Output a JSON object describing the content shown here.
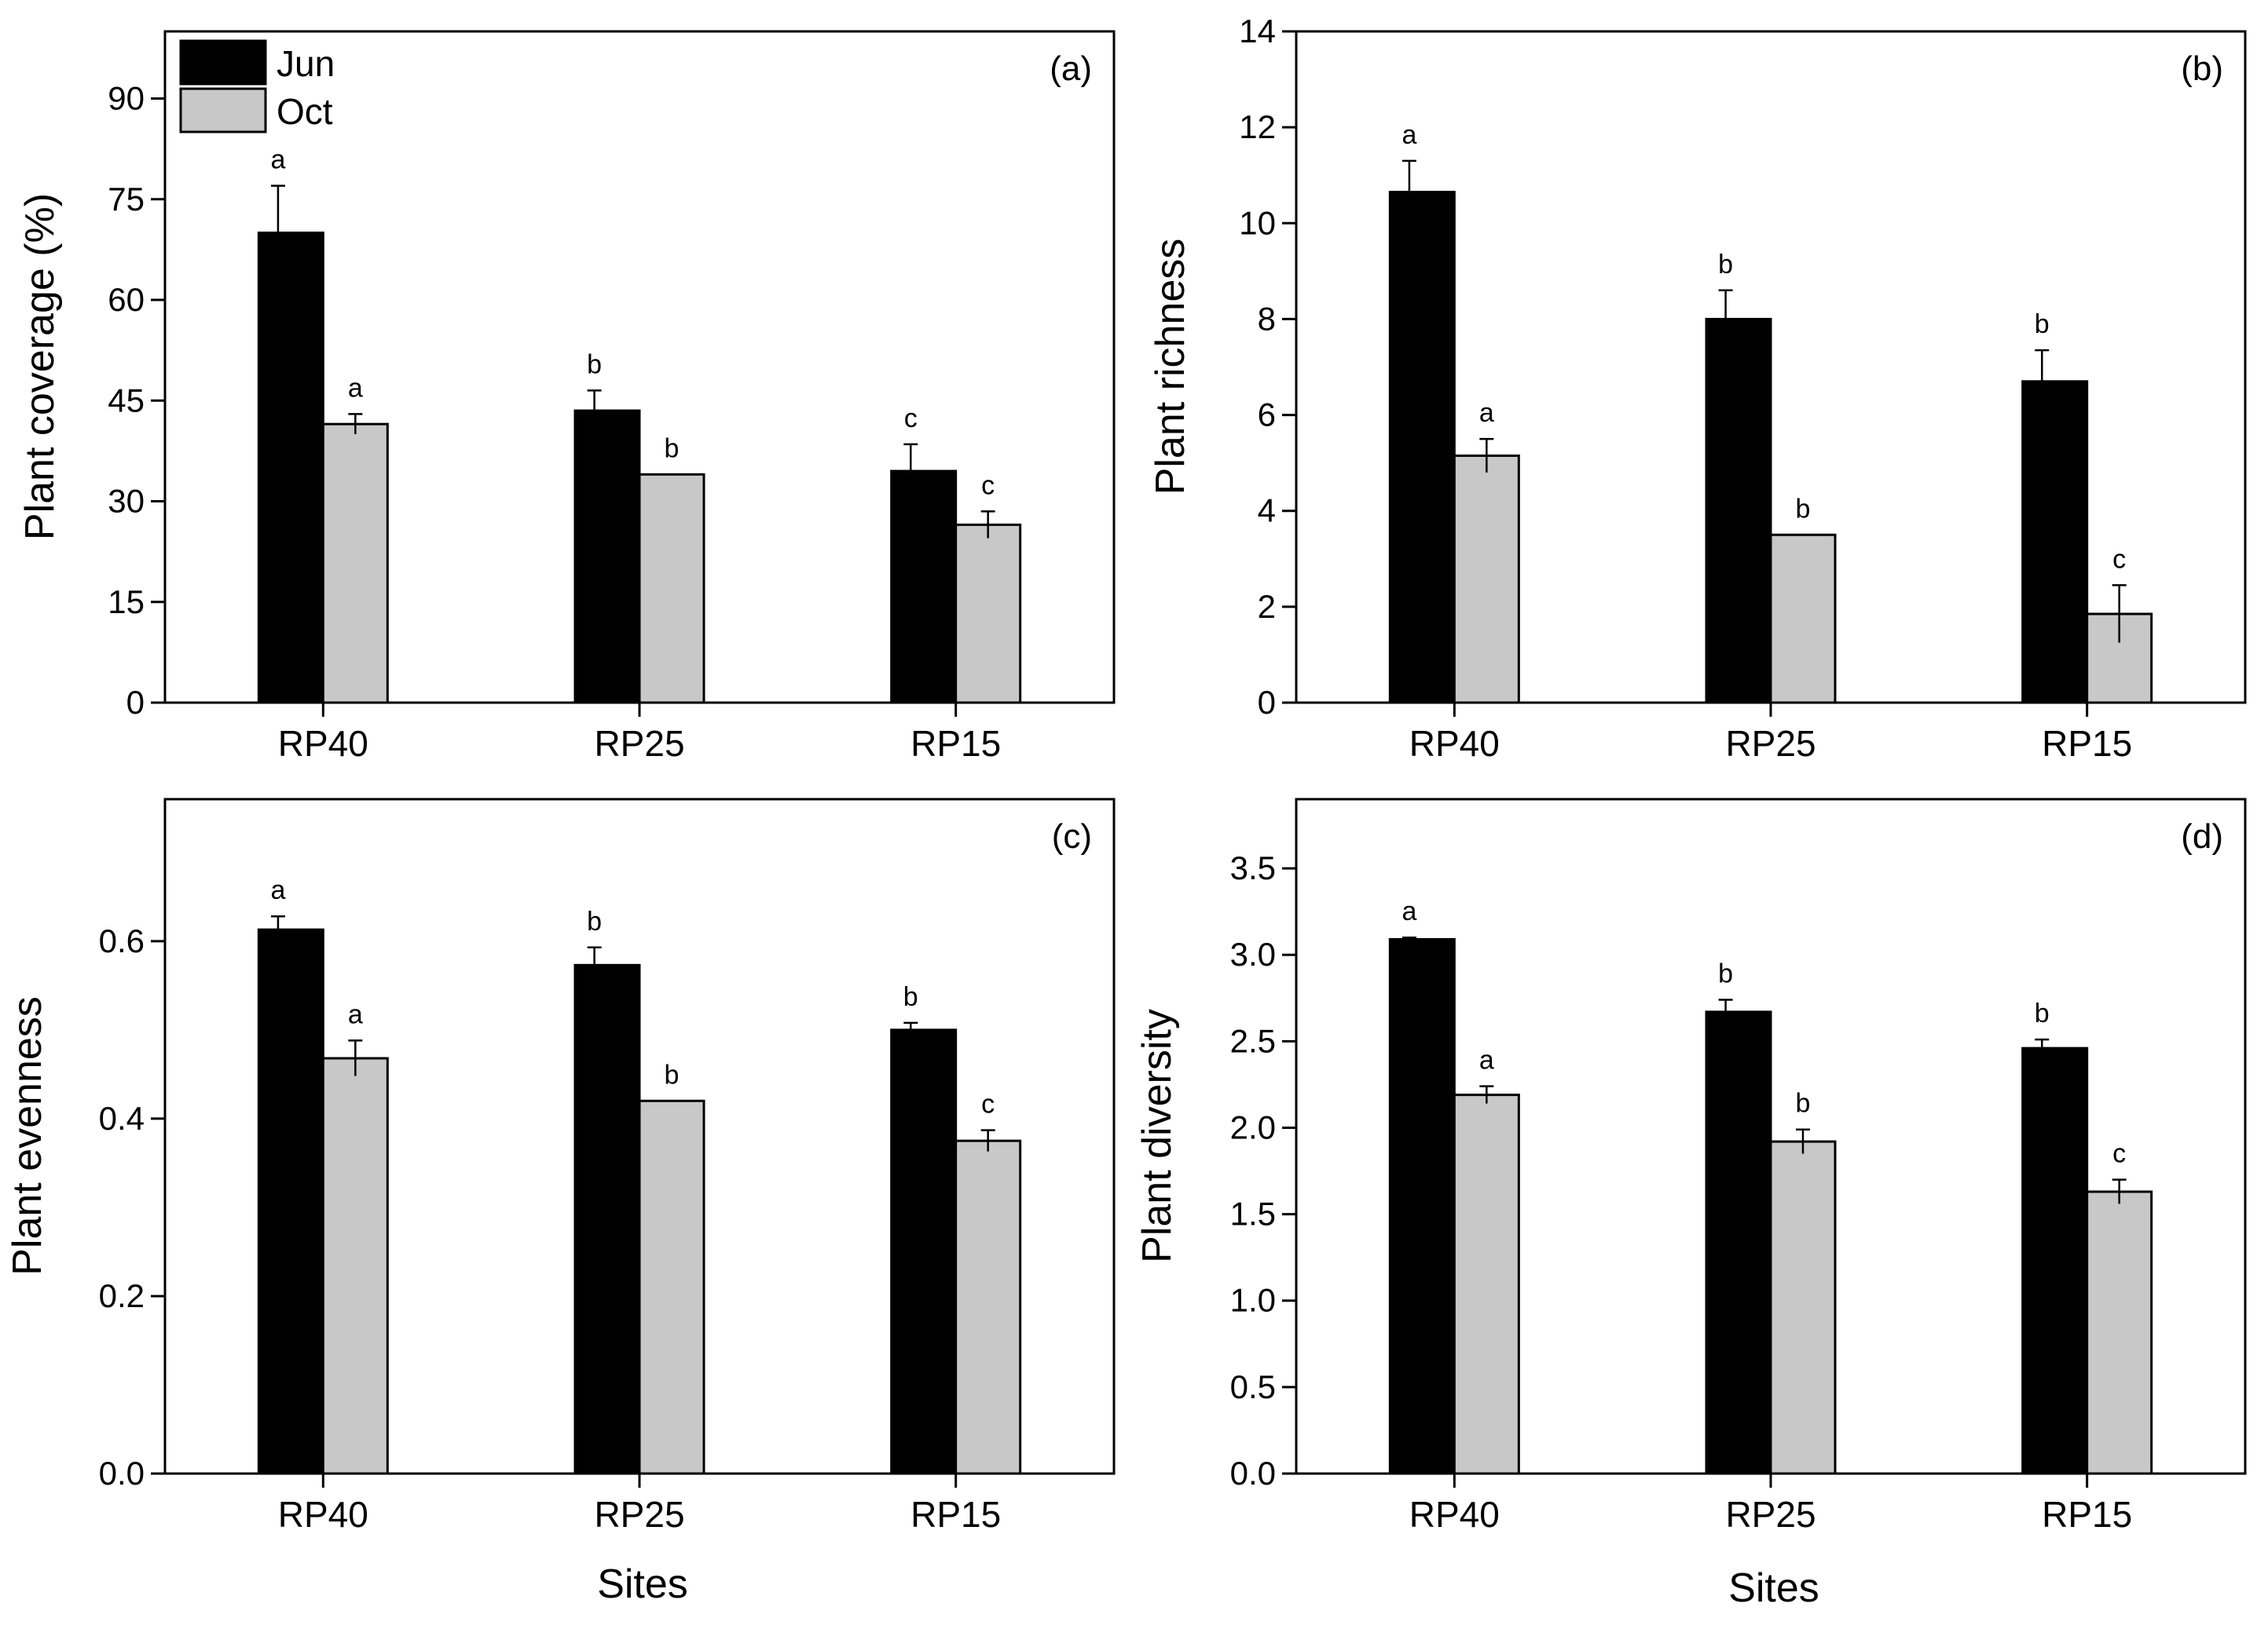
{
  "colors": {
    "Jun": "#000000",
    "Oct": "#c8c8c8",
    "axis": "#000000"
  },
  "legend": [
    {
      "name": "Jun"
    },
    {
      "name": "Oct"
    }
  ],
  "chart_data": [
    {
      "type": "bar",
      "panel_label": "(a)",
      "categories": [
        "RP40",
        "RP25",
        "RP15"
      ],
      "ylabel": "Plant coverage (%)",
      "xlabel": "",
      "ylim": [
        0,
        100
      ],
      "yticks": [
        "0",
        "15",
        "30",
        "45",
        "60",
        "75",
        "90"
      ],
      "legend_position": "top-left",
      "series": [
        {
          "name": "Jun",
          "values": [
            70,
            43.5,
            34.5
          ],
          "errors": [
            7,
            3,
            4
          ],
          "letters": [
            "a",
            "b",
            "c"
          ]
        },
        {
          "name": "Oct",
          "values": [
            41.5,
            34,
            26.5
          ],
          "errors": [
            1.5,
            0,
            2
          ],
          "letters": [
            "a",
            "b",
            "c"
          ]
        }
      ]
    },
    {
      "type": "bar",
      "panel_label": "(b)",
      "categories": [
        "RP40",
        "RP25",
        "RP15"
      ],
      "ylabel": "Plant richness",
      "xlabel": "",
      "ylim": [
        0,
        14
      ],
      "yticks": [
        "0",
        "2",
        "4",
        "6",
        "8",
        "10",
        "12",
        "14"
      ],
      "series": [
        {
          "name": "Jun",
          "values": [
            10.65,
            8,
            6.7
          ],
          "errors": [
            0.65,
            0.6,
            0.65
          ],
          "letters": [
            "a",
            "b",
            "b"
          ]
        },
        {
          "name": "Oct",
          "values": [
            5.15,
            3.5,
            1.85
          ],
          "errors": [
            0.35,
            0,
            0.6
          ],
          "letters": [
            "a",
            "b",
            "c"
          ]
        }
      ]
    },
    {
      "type": "bar",
      "panel_label": "(c)",
      "categories": [
        "RP40",
        "RP25",
        "RP15"
      ],
      "ylabel": "Plant evenness",
      "xlabel": "Sites",
      "ylim": [
        0,
        0.76
      ],
      "yticks": [
        "0.0",
        "0.2",
        "0.4",
        "0.6"
      ],
      "series": [
        {
          "name": "Jun",
          "values": [
            0.613,
            0.573,
            0.5
          ],
          "errors": [
            0.015,
            0.02,
            0.008
          ],
          "letters": [
            "a",
            "b",
            "b"
          ]
        },
        {
          "name": "Oct",
          "values": [
            0.468,
            0.42,
            0.375
          ],
          "errors": [
            0.02,
            0,
            0.012
          ],
          "letters": [
            "a",
            "b",
            "c"
          ]
        }
      ]
    },
    {
      "type": "bar",
      "panel_label": "(d)",
      "categories": [
        "RP40",
        "RP25",
        "RP15"
      ],
      "ylabel": "Plant diversity",
      "xlabel": "Sites",
      "ylim": [
        0,
        3.9
      ],
      "yticks": [
        "0.0",
        "0.5",
        "1.0",
        "1.5",
        "2.0",
        "2.5",
        "3.0",
        "3.5"
      ],
      "series": [
        {
          "name": "Jun",
          "values": [
            3.09,
            2.67,
            2.46
          ],
          "errors": [
            0.01,
            0.07,
            0.05
          ],
          "letters": [
            "a",
            "b",
            "b"
          ]
        },
        {
          "name": "Oct",
          "values": [
            2.19,
            1.92,
            1.63
          ],
          "errors": [
            0.05,
            0.07,
            0.07
          ],
          "letters": [
            "a",
            "b",
            "c"
          ]
        }
      ]
    }
  ]
}
